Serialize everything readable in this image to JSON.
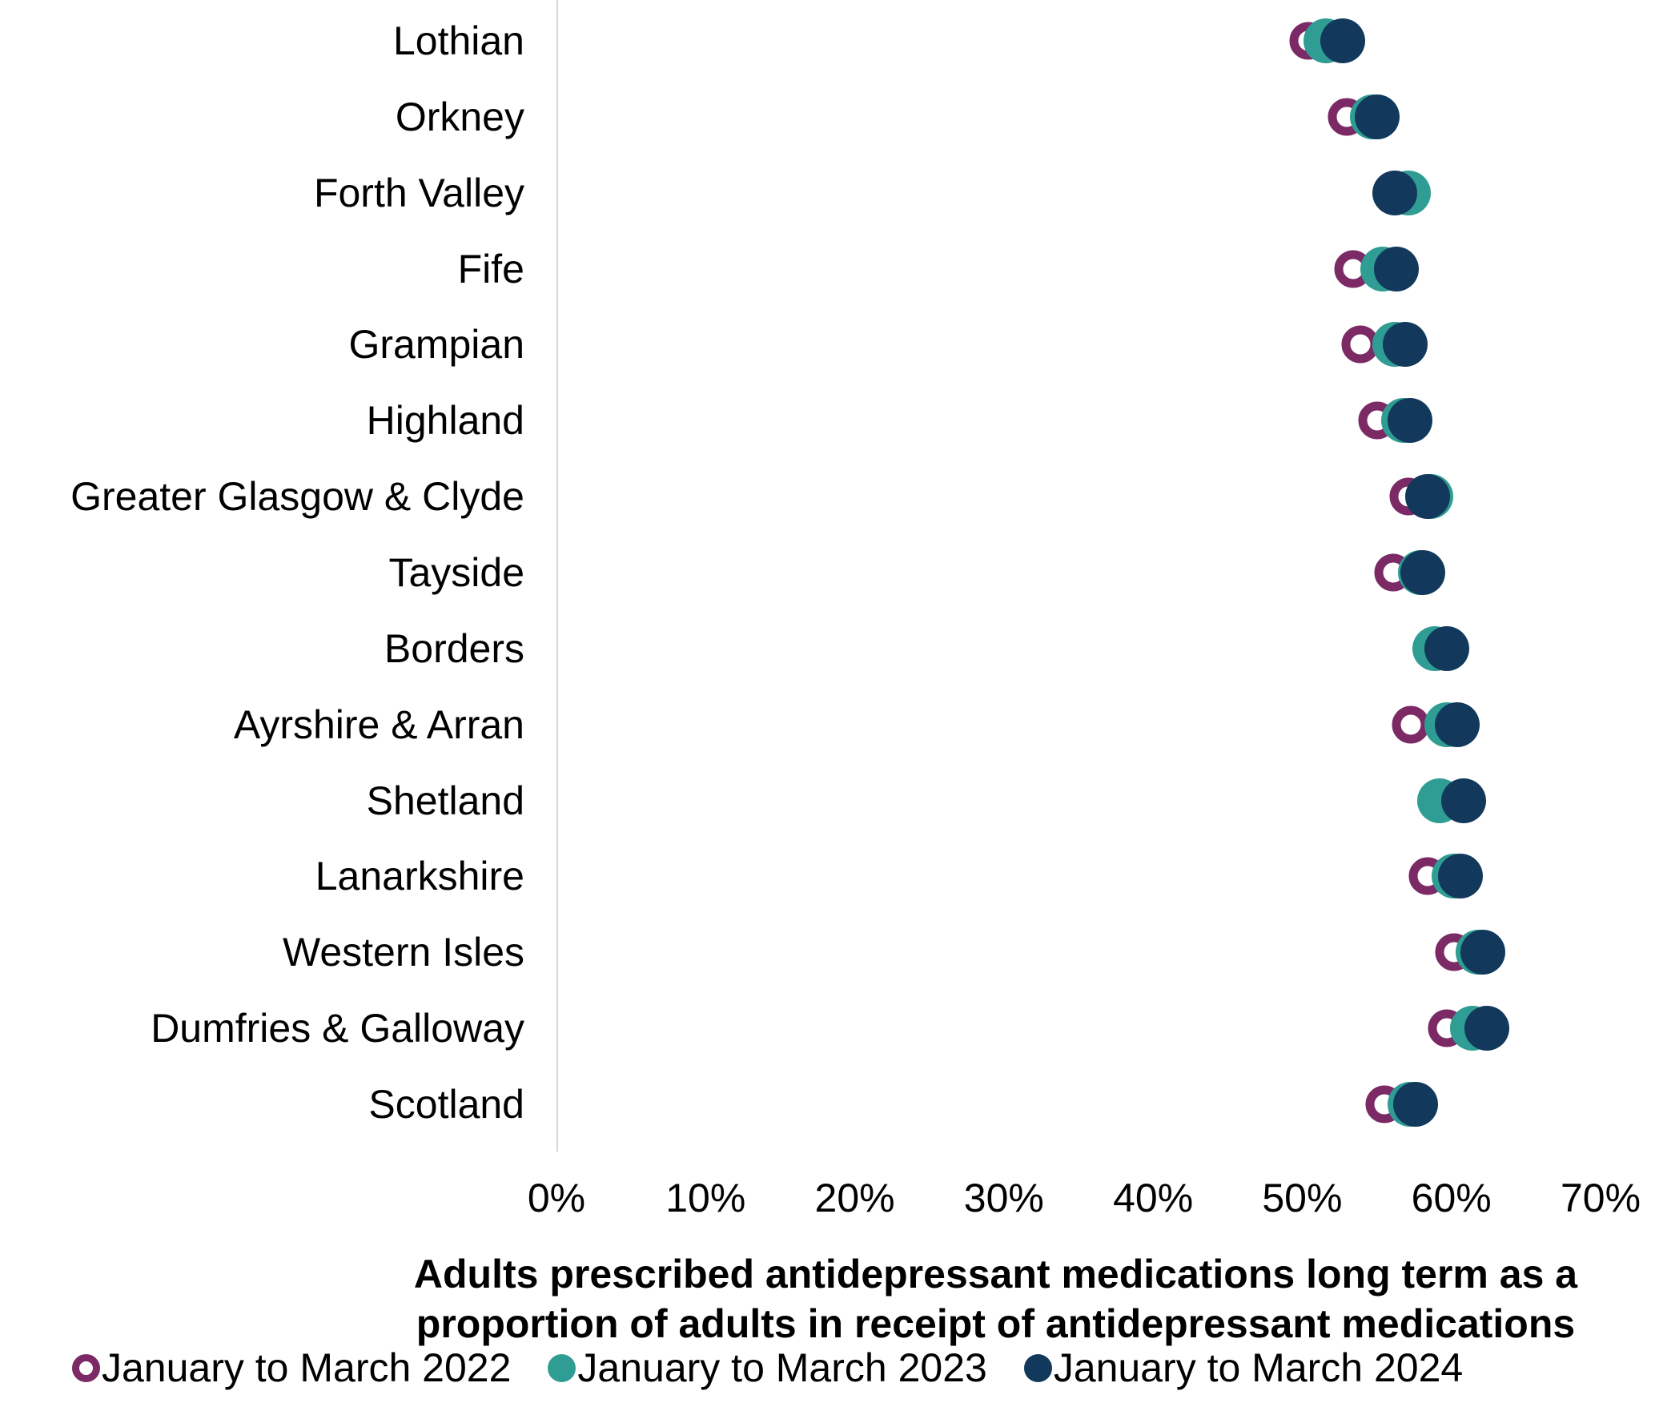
{
  "chart_data": {
    "type": "scatter",
    "subtype": "horizontal-dot-plot",
    "xlabel_line1": "Adults prescribed antidepressant medications long term as a",
    "xlabel_line2": "proportion of adults in receipt of antidepressant medications",
    "xlim": [
      0,
      70
    ],
    "x_tick_labels": [
      "0%",
      "10%",
      "20%",
      "30%",
      "40%",
      "50%",
      "60%",
      "70%"
    ],
    "grid": false,
    "legend_position": "bottom",
    "categories": [
      "Lothian",
      "Orkney",
      "Forth Valley",
      "Fife",
      "Grampian",
      "Highland",
      "Greater Glasgow & Clyde",
      "Tayside",
      "Borders",
      "Ayrshire & Arran",
      "Shetland",
      "Lanarkshire",
      "Western Isles",
      "Dumfries & Galloway",
      "Scotland"
    ],
    "series": [
      {
        "name": "January to March 2022",
        "marker": "open-circle",
        "color": "#7B2A66",
        "values": [
          50.4,
          53.0,
          56.6,
          53.4,
          53.9,
          55.0,
          57.1,
          56.1,
          59.2,
          57.3,
          59.8,
          58.4,
          60.2,
          59.7,
          55.5
        ]
      },
      {
        "name": "January to March 2023",
        "marker": "filled-circle",
        "color": "#2F9D93",
        "values": [
          51.6,
          54.7,
          57.1,
          55.4,
          56.2,
          56.8,
          58.6,
          57.9,
          58.9,
          59.7,
          59.2,
          60.2,
          61.8,
          61.4,
          57.2
        ]
      },
      {
        "name": "January to March 2024",
        "marker": "filled-circle",
        "color": "#12395B",
        "values": [
          52.7,
          55.0,
          56.2,
          56.3,
          56.9,
          57.2,
          58.4,
          58.1,
          59.7,
          60.4,
          60.8,
          60.6,
          62.1,
          62.4,
          57.6
        ]
      }
    ]
  },
  "colors": {
    "axis_line": "#D6D6D6",
    "text": "#000000",
    "background": "#FFFFFF"
  }
}
